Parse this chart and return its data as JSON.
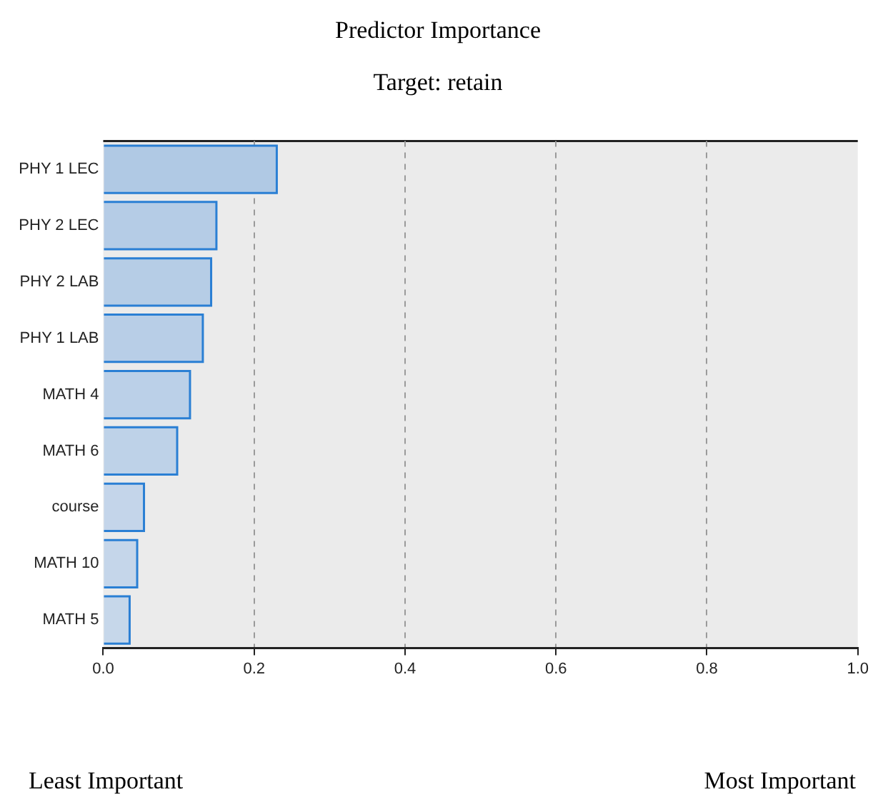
{
  "chart_data": {
    "type": "bar",
    "orientation": "horizontal",
    "title": "Predictor Importance",
    "subtitle": "Target: retain",
    "categories": [
      "PHY 1 LEC",
      "PHY 2 LEC",
      "PHY 2 LAB",
      "PHY 1 LAB",
      "MATH 4",
      "MATH 6",
      "course",
      "MATH 10",
      "MATH 5"
    ],
    "values": [
      0.23,
      0.15,
      0.143,
      0.132,
      0.115,
      0.098,
      0.054,
      0.045,
      0.035
    ],
    "color": "#2a7fd4",
    "colors": [
      "#b0c9e4",
      "#b5cce6",
      "#b6cde6",
      "#b8cee7",
      "#bbd0e8",
      "#bed2e8",
      "#c4d5ea",
      "#c5d6ea",
      "#c6d7ea"
    ],
    "xlim": [
      0,
      1
    ],
    "xticks": [
      {
        "value": 0,
        "label": "0.0"
      },
      {
        "value": 0.2,
        "label": "0.2"
      },
      {
        "value": 0.4,
        "label": "0.4"
      },
      {
        "value": 0.6,
        "label": "0.6"
      },
      {
        "value": 0.8,
        "label": "0.8"
      },
      {
        "value": 1,
        "label": "1.0"
      }
    ],
    "grid": "x",
    "legend": false,
    "annotations": [
      "Least Important",
      "Most Important"
    ]
  }
}
